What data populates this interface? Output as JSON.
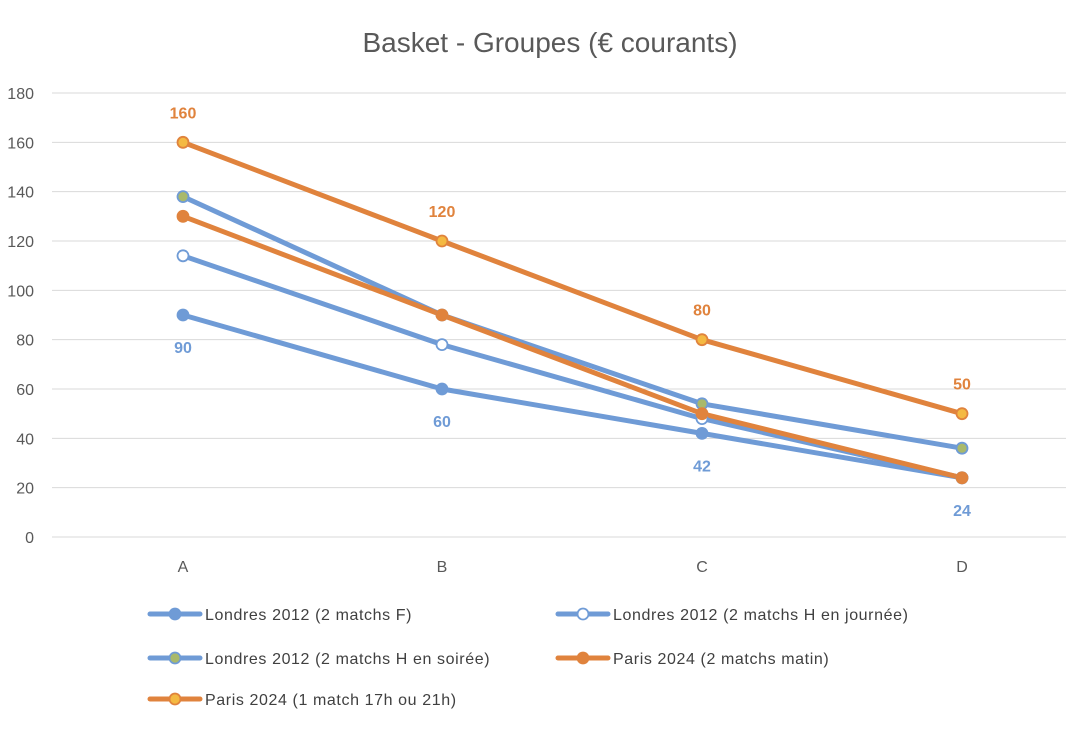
{
  "chart_data": {
    "type": "line",
    "title": "Basket - Groupes (€ courants)",
    "xlabel": "",
    "ylabel": "",
    "categories": [
      "A",
      "B",
      "C",
      "D"
    ],
    "ylim": [
      0,
      180
    ],
    "yticks": [
      0,
      20,
      40,
      60,
      80,
      100,
      120,
      140,
      160,
      180
    ],
    "grid": true,
    "legend_position": "bottom",
    "series": [
      {
        "name": "Londres 2012 (2 matchs F)",
        "values": [
          90,
          60,
          42,
          24
        ],
        "color": "#6f9bd6",
        "marker": "filled",
        "marker_fill": "#6f9bd6",
        "data_labels": [
          "90",
          "60",
          "42",
          "24"
        ],
        "label_color": "#6f9bd6",
        "label_position": "below"
      },
      {
        "name": "Londres 2012 (2 matchs H en journée)",
        "values": [
          114,
          78,
          48,
          24
        ],
        "color": "#6f9bd6",
        "marker": "hollow",
        "marker_fill": "#ffffff"
      },
      {
        "name": "Londres 2012 (2 matchs H en soirée)",
        "values": [
          138,
          90,
          54,
          36
        ],
        "color": "#6f9bd6",
        "marker": "filled",
        "marker_fill": "#a9b96b"
      },
      {
        "name": "Paris 2024 (2 matchs matin)",
        "values": [
          130,
          90,
          50,
          24
        ],
        "color": "#e0833d",
        "marker": "filled",
        "marker_fill": "#e0833d"
      },
      {
        "name": "Paris 2024 (1 match 17h ou 21h)",
        "values": [
          160,
          120,
          80,
          50
        ],
        "color": "#e0833d",
        "marker": "filled",
        "marker_fill": "#f4b942",
        "data_labels": [
          "160",
          "120",
          "80",
          "50"
        ],
        "label_color": "#e0833d",
        "label_position": "above"
      }
    ]
  }
}
